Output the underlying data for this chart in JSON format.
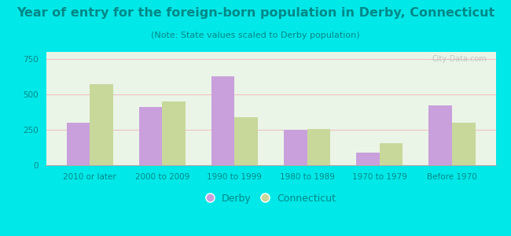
{
  "title": "Year of entry for the foreign-born population in Derby, Connecticut",
  "subtitle": "(Note: State values scaled to Derby population)",
  "categories": [
    "2010 or later",
    "2000 to 2009",
    "1990 to 1999",
    "1980 to 1989",
    "1970 to 1979",
    "Before 1970"
  ],
  "derby_values": [
    300,
    410,
    630,
    250,
    90,
    420
  ],
  "ct_values": [
    570,
    450,
    340,
    255,
    155,
    300
  ],
  "derby_color": "#c9a0dc",
  "ct_color": "#c8d89a",
  "bg_color": "#00e8e8",
  "plot_bg_color": "#eaf5e8",
  "text_color": "#008888",
  "ylim": [
    0,
    800
  ],
  "yticks": [
    0,
    250,
    500,
    750
  ],
  "bar_width": 0.32,
  "legend_derby": "Derby",
  "legend_ct": "Connecticut",
  "title_fontsize": 11.5,
  "subtitle_fontsize": 8,
  "tick_fontsize": 7.5,
  "legend_fontsize": 9,
  "watermark": "City-Data.com"
}
